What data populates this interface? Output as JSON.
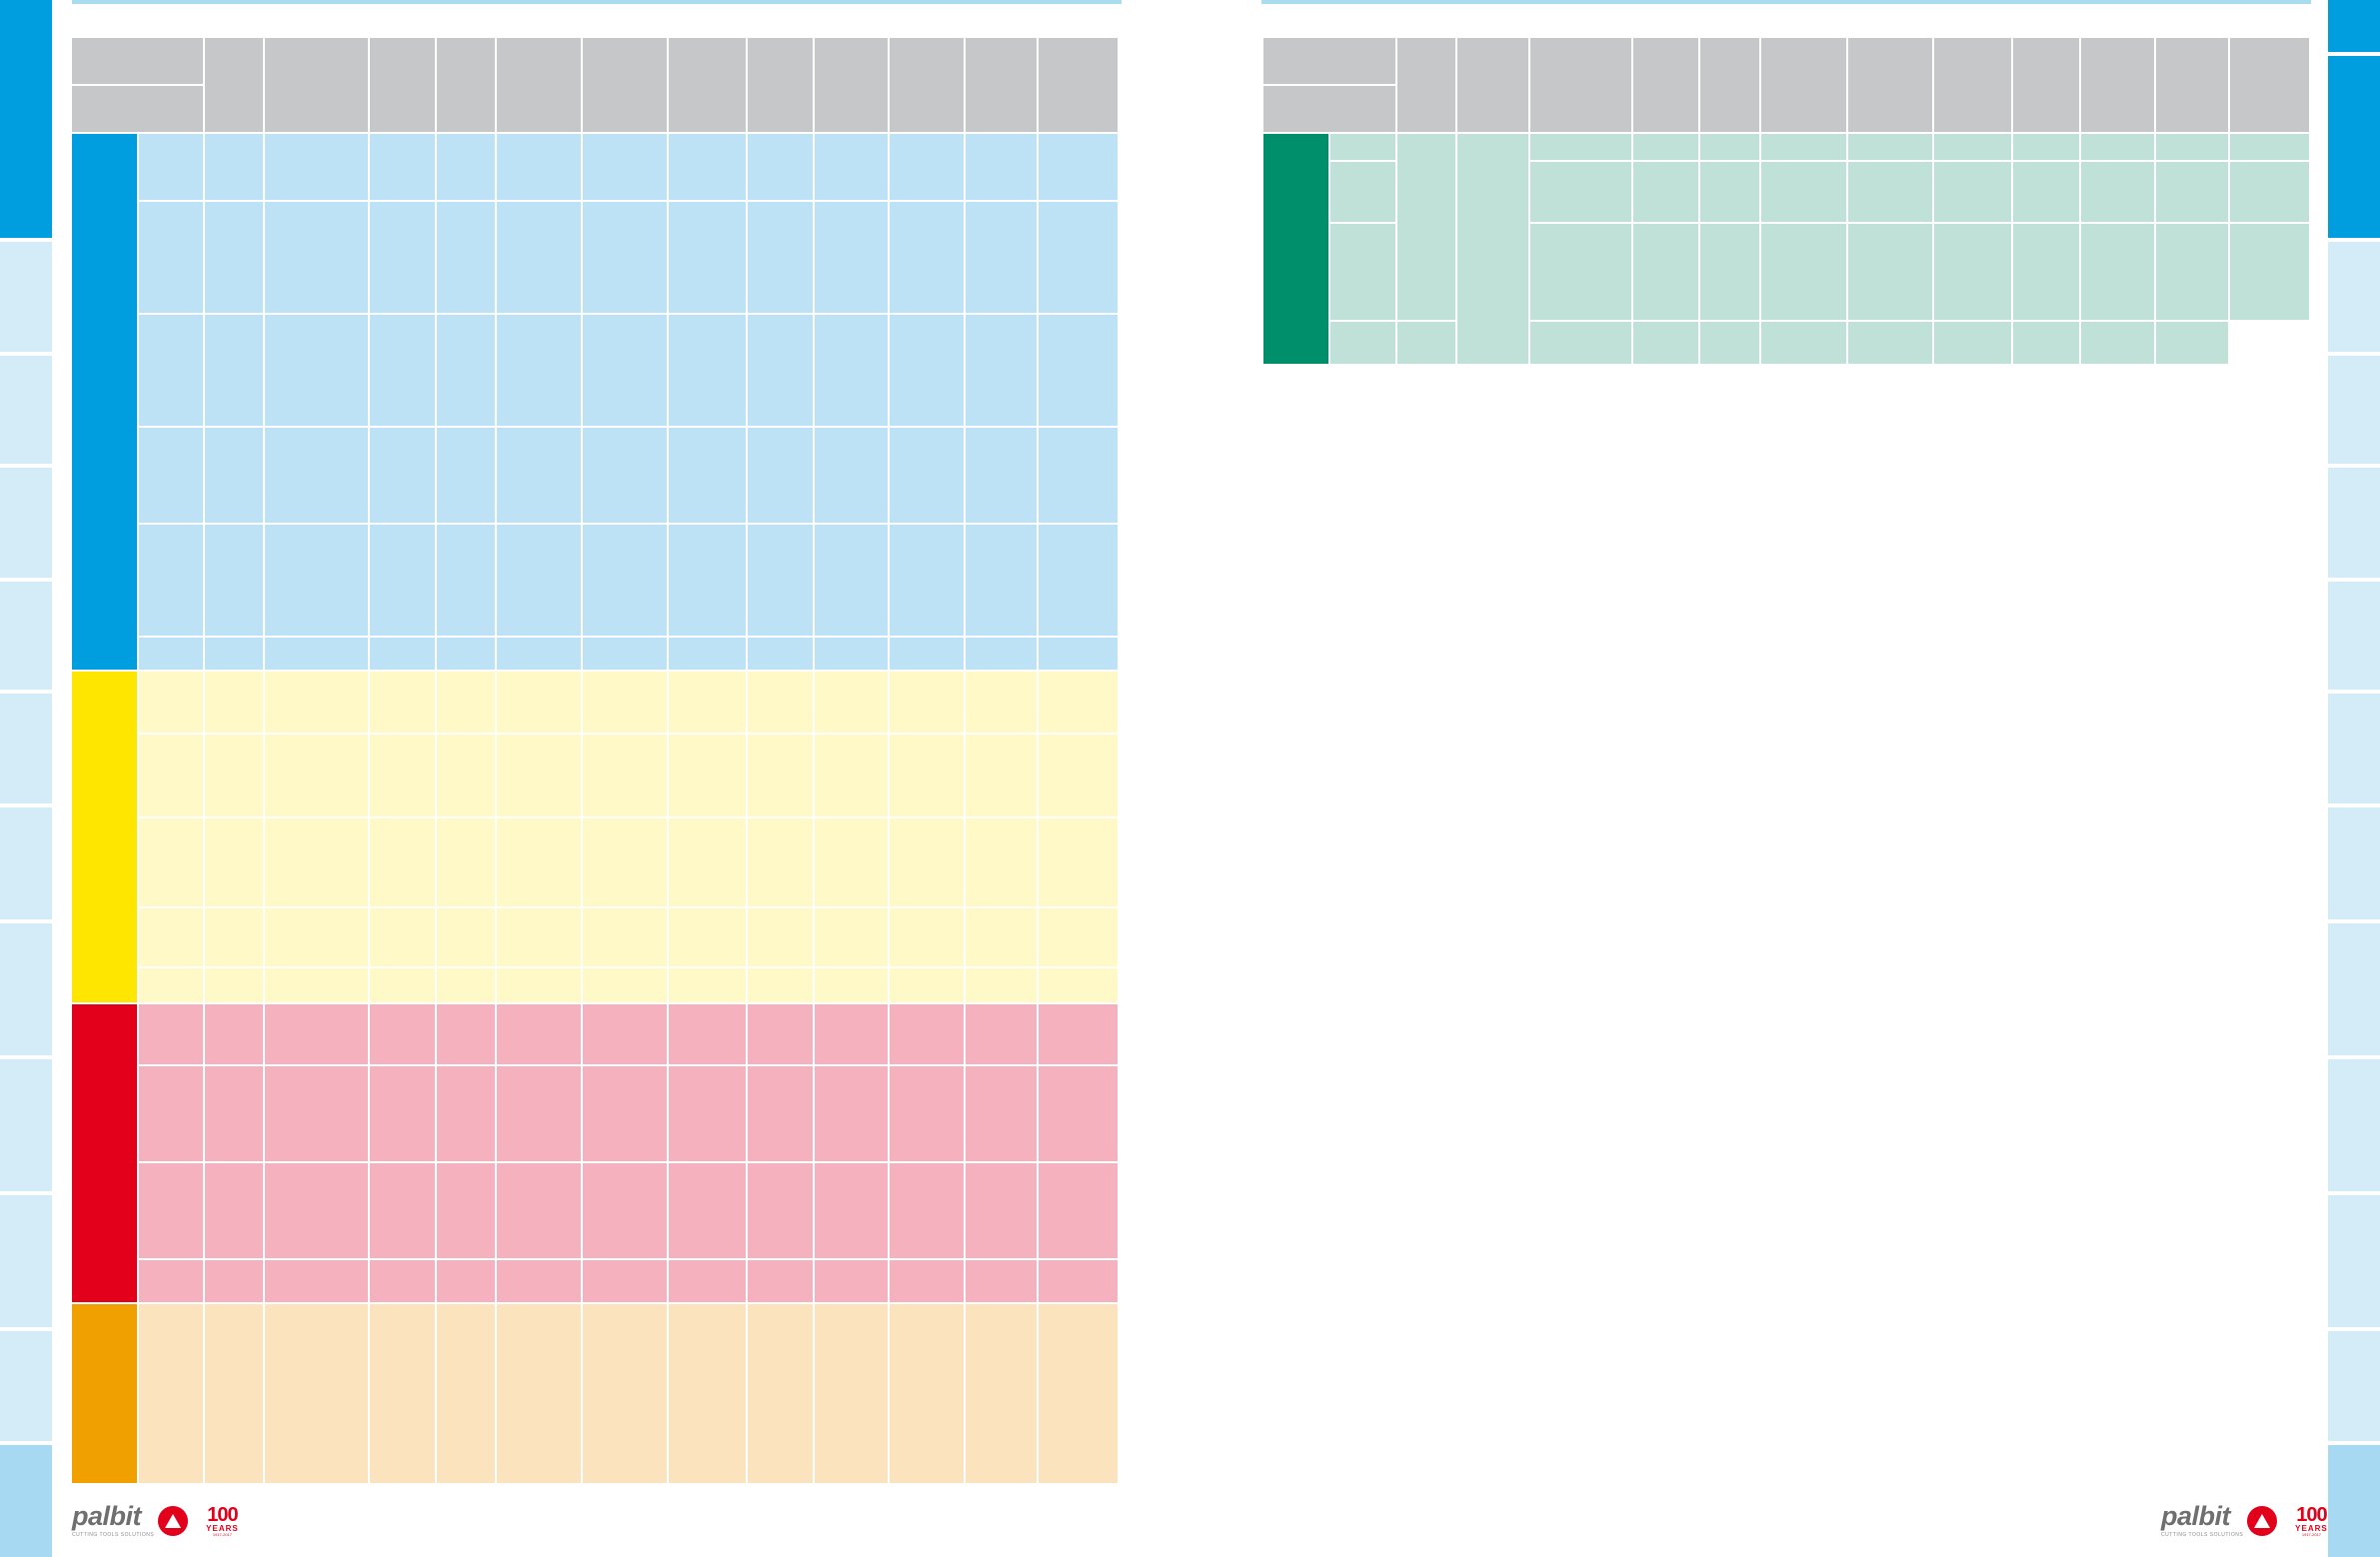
{
  "colors": {
    "accent_blue": "#009ddf",
    "tab_light_blue": "#d4ecf8",
    "tab_bottom_blue": "#a8d9f2",
    "header_gray": "#c6c7c9",
    "rule_cyan": "#a9dcee",
    "band_p": "#009ddf",
    "band_p_fill": "#bde2f5",
    "band_m": "#ffe600",
    "band_m_fill": "#fff8c7",
    "band_k": "#e2001a",
    "band_k_fill": "#f6b1bf",
    "band_n": "#f0a100",
    "band_n_fill": "#fbe3bd",
    "band_h": "#008f6b",
    "band_h_fill": "#bfe1d7"
  },
  "footer": {
    "brand": "palbit",
    "tagline": "CUTTING TOOLS SOLUTIONS",
    "years_number": "100",
    "years_word": "YEARS",
    "years_span": "1917-2017",
    "logo_icon": "palbit-triangle-icon"
  }
}
